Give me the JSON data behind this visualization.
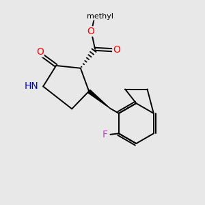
{
  "bg_color": "#e8e8e8",
  "atom_colors": {
    "O": "#ff0000",
    "N": "#0000bb",
    "F": "#bb44bb",
    "C": "#000000"
  },
  "bond_lw": 1.4,
  "fig_size": [
    3.0,
    3.0
  ],
  "dpi": 100
}
